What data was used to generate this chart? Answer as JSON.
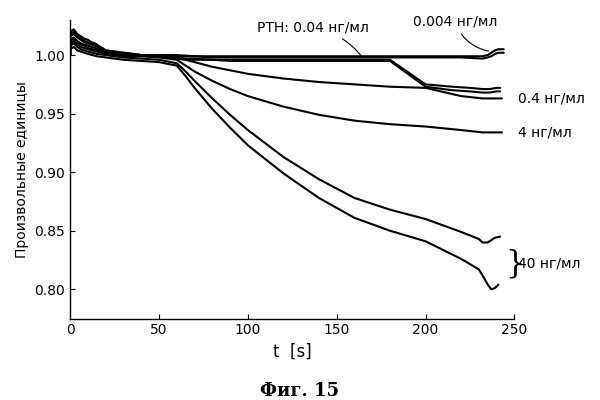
{
  "xlabel": "t  [s]",
  "ylabel": "Произвольные единицы",
  "caption": "Фиг. 15",
  "xlim": [
    0,
    250
  ],
  "ylim": [
    0.775,
    1.03
  ],
  "xticks": [
    0,
    50,
    100,
    150,
    200,
    250
  ],
  "yticks": [
    0.8,
    0.85,
    0.9,
    0.95,
    1.0
  ],
  "annotation_pth": "РТН: 0.04 нг/мл",
  "label_0004": "0.004 нг/мл",
  "label_04": "0.4 нг/мл",
  "label_4": "4 нг/мл",
  "label_40": "40 нг/мл",
  "line_color": "#000000",
  "background_color": "#ffffff",
  "curves": {
    "conc_0004_rep1": {
      "x": [
        0,
        0,
        2,
        4,
        6,
        8,
        10,
        12,
        14,
        16,
        18,
        20,
        25,
        30,
        35,
        40,
        45,
        50,
        55,
        60,
        70,
        80,
        90,
        100,
        120,
        140,
        160,
        180,
        200,
        220,
        232,
        235,
        237,
        239,
        241,
        244
      ],
      "y": [
        1.0,
        1.02,
        1.022,
        1.018,
        1.016,
        1.014,
        1.013,
        1.011,
        1.01,
        1.008,
        1.006,
        1.004,
        1.003,
        1.002,
        1.001,
        1.0,
        1.0,
        1.0,
        1.0,
        1.0,
        0.999,
        0.999,
        0.999,
        0.999,
        0.999,
        0.999,
        0.999,
        0.999,
        0.999,
        0.999,
        0.999,
        1.0,
        1.002,
        1.004,
        1.005,
        1.005
      ]
    },
    "conc_0004_rep2": {
      "x": [
        0,
        0,
        2,
        4,
        6,
        8,
        10,
        12,
        14,
        16,
        18,
        20,
        25,
        30,
        35,
        40,
        45,
        50,
        55,
        60,
        70,
        80,
        90,
        100,
        120,
        140,
        160,
        180,
        200,
        220,
        232,
        235,
        237,
        239,
        241,
        244
      ],
      "y": [
        1.0,
        1.016,
        1.018,
        1.015,
        1.013,
        1.011,
        1.01,
        1.009,
        1.008,
        1.006,
        1.005,
        1.003,
        1.002,
        1.001,
        1.001,
        1.0,
        1.0,
        1.0,
        0.999,
        0.999,
        0.999,
        0.998,
        0.998,
        0.998,
        0.998,
        0.998,
        0.998,
        0.998,
        0.998,
        0.998,
        0.997,
        0.998,
        0.999,
        1.001,
        1.002,
        1.002
      ]
    },
    "conc_004_rep1": {
      "x": [
        0,
        0,
        2,
        4,
        6,
        8,
        10,
        12,
        14,
        16,
        18,
        20,
        25,
        30,
        35,
        40,
        45,
        50,
        55,
        60,
        65,
        70,
        80,
        90,
        100,
        120,
        140,
        160,
        180,
        200,
        215,
        225,
        232,
        236,
        240,
        242
      ],
      "y": [
        1.0,
        1.018,
        1.02,
        1.016,
        1.014,
        1.012,
        1.011,
        1.01,
        1.009,
        1.007,
        1.006,
        1.004,
        1.003,
        1.002,
        1.001,
        1.0,
        1.0,
        0.999,
        0.999,
        0.998,
        0.997,
        0.997,
        0.996,
        0.996,
        0.996,
        0.996,
        0.996,
        0.996,
        0.996,
        0.975,
        0.973,
        0.972,
        0.971,
        0.971,
        0.972,
        0.972
      ]
    },
    "conc_004_rep2": {
      "x": [
        0,
        0,
        2,
        4,
        6,
        8,
        10,
        12,
        14,
        16,
        18,
        20,
        25,
        30,
        35,
        40,
        45,
        50,
        55,
        60,
        65,
        70,
        80,
        90,
        100,
        120,
        140,
        160,
        180,
        200,
        215,
        225,
        232,
        236,
        240,
        242
      ],
      "y": [
        1.0,
        1.013,
        1.015,
        1.012,
        1.01,
        1.009,
        1.008,
        1.007,
        1.006,
        1.005,
        1.004,
        1.002,
        1.001,
        1.001,
        1.0,
        1.0,
        0.999,
        0.999,
        0.998,
        0.997,
        0.996,
        0.996,
        0.996,
        0.995,
        0.995,
        0.995,
        0.995,
        0.995,
        0.995,
        0.973,
        0.97,
        0.969,
        0.968,
        0.968,
        0.969,
        0.969
      ]
    },
    "conc_04": {
      "x": [
        0,
        0,
        2,
        4,
        6,
        8,
        10,
        15,
        20,
        25,
        30,
        40,
        50,
        60,
        65,
        70,
        80,
        90,
        100,
        120,
        140,
        160,
        180,
        200,
        220,
        232,
        236,
        240,
        243
      ],
      "y": [
        1.0,
        1.012,
        1.014,
        1.011,
        1.009,
        1.008,
        1.006,
        1.004,
        1.002,
        1.001,
        1.0,
        1.0,
        0.999,
        0.998,
        0.996,
        0.994,
        0.99,
        0.987,
        0.984,
        0.98,
        0.977,
        0.975,
        0.973,
        0.972,
        0.965,
        0.963,
        0.963,
        0.963,
        0.963
      ]
    },
    "conc_4": {
      "x": [
        0,
        0,
        2,
        4,
        6,
        8,
        10,
        15,
        20,
        25,
        30,
        40,
        50,
        60,
        65,
        70,
        80,
        90,
        100,
        120,
        140,
        160,
        180,
        200,
        220,
        232,
        236,
        240,
        243
      ],
      "y": [
        1.0,
        1.01,
        1.012,
        1.009,
        1.007,
        1.006,
        1.005,
        1.003,
        1.001,
        1.0,
        0.999,
        0.999,
        0.998,
        0.996,
        0.991,
        0.986,
        0.978,
        0.971,
        0.965,
        0.956,
        0.949,
        0.944,
        0.941,
        0.939,
        0.936,
        0.934,
        0.934,
        0.934,
        0.934
      ]
    },
    "conc_40_rep1": {
      "x": [
        0,
        0,
        2,
        4,
        6,
        8,
        10,
        15,
        20,
        25,
        30,
        40,
        50,
        60,
        65,
        70,
        80,
        90,
        100,
        120,
        140,
        160,
        180,
        200,
        220,
        230,
        232,
        235,
        237,
        239,
        242
      ],
      "y": [
        1.0,
        1.008,
        1.01,
        1.007,
        1.005,
        1.004,
        1.003,
        1.001,
        1.0,
        0.999,
        0.998,
        0.997,
        0.996,
        0.993,
        0.986,
        0.978,
        0.963,
        0.949,
        0.936,
        0.913,
        0.894,
        0.878,
        0.868,
        0.86,
        0.849,
        0.843,
        0.84,
        0.84,
        0.842,
        0.844,
        0.845
      ]
    },
    "conc_40_rep2": {
      "x": [
        0,
        0,
        2,
        4,
        6,
        8,
        10,
        15,
        20,
        25,
        30,
        40,
        50,
        60,
        65,
        70,
        80,
        90,
        100,
        120,
        140,
        160,
        180,
        200,
        220,
        230,
        232,
        235,
        237,
        239,
        241
      ],
      "y": [
        1.0,
        1.005,
        1.007,
        1.004,
        1.003,
        1.002,
        1.001,
        0.999,
        0.998,
        0.997,
        0.996,
        0.995,
        0.994,
        0.991,
        0.982,
        0.972,
        0.954,
        0.938,
        0.923,
        0.899,
        0.878,
        0.861,
        0.85,
        0.841,
        0.826,
        0.817,
        0.812,
        0.804,
        0.8,
        0.801,
        0.804
      ]
    }
  }
}
